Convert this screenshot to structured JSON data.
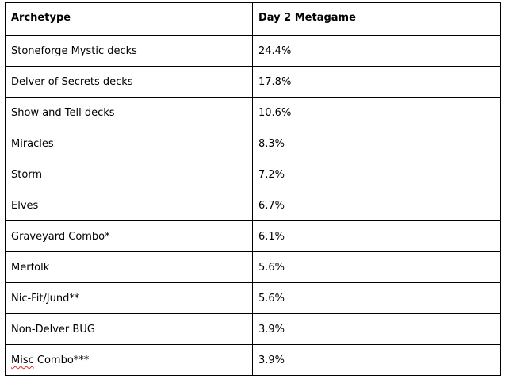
{
  "table": {
    "headers": [
      "Archetype",
      "Day 2 Metagame"
    ],
    "rows": [
      {
        "archetype": "Stoneforge Mystic decks",
        "share": "24.4%"
      },
      {
        "archetype": "Delver of Secrets decks",
        "share": "17.8%"
      },
      {
        "archetype": "Show and Tell decks",
        "share": "10.6%"
      },
      {
        "archetype": "Miracles",
        "share": "8.3%"
      },
      {
        "archetype": "Storm",
        "share": "7.2%"
      },
      {
        "archetype": "Elves",
        "share": "6.7%"
      },
      {
        "archetype": "Graveyard Combo*",
        "share": "6.1%"
      },
      {
        "archetype": "Merfolk",
        "share": "5.6%"
      },
      {
        "archetype": "Nic-Fit/Jund**",
        "share": "5.6%"
      },
      {
        "archetype": "Non-Delver BUG",
        "share": "3.9%"
      },
      {
        "archetype_prefix": "Misc",
        "archetype_suffix": " Combo***",
        "share": "3.9%"
      }
    ]
  }
}
